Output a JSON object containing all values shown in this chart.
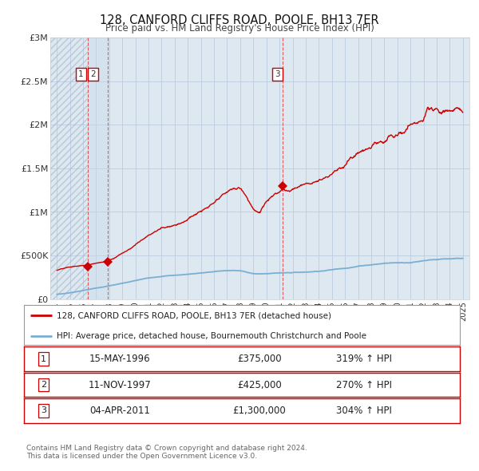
{
  "title": "128, CANFORD CLIFFS ROAD, POOLE, BH13 7ER",
  "subtitle": "Price paid vs. HM Land Registry's House Price Index (HPI)",
  "plot_bg_color": "#dde8f0",
  "red_line_color": "#cc0000",
  "blue_line_color": "#7aafd4",
  "vline_color": "#dd4444",
  "transactions": [
    {
      "label": "1",
      "date_num": 1996.37,
      "price": 375000
    },
    {
      "label": "2",
      "date_num": 1997.87,
      "price": 425000
    },
    {
      "label": "3",
      "date_num": 2011.25,
      "price": 1300000
    }
  ],
  "table_rows": [
    {
      "num": "1",
      "date": "15-MAY-1996",
      "price": "£375,000",
      "hpi": "319% ↑ HPI"
    },
    {
      "num": "2",
      "date": "11-NOV-1997",
      "price": "£425,000",
      "hpi": "270% ↑ HPI"
    },
    {
      "num": "3",
      "date": "04-APR-2011",
      "price": "£1,300,000",
      "hpi": "304% ↑ HPI"
    }
  ],
  "legend_line1": "128, CANFORD CLIFFS ROAD, POOLE, BH13 7ER (detached house)",
  "legend_line2": "HPI: Average price, detached house, Bournemouth Christchurch and Poole",
  "footnote1": "Contains HM Land Registry data © Crown copyright and database right 2024.",
  "footnote2": "This data is licensed under the Open Government Licence v3.0.",
  "ylim": [
    0,
    3000000
  ],
  "xlim": [
    1993.5,
    2025.5
  ],
  "yticks": [
    0,
    500000,
    1000000,
    1500000,
    2000000,
    2500000,
    3000000
  ],
  "ytick_labels": [
    "£0",
    "£500K",
    "£1M",
    "£1.5M",
    "£2M",
    "£2.5M",
    "£3M"
  ],
  "xticks": [
    1994,
    1995,
    1996,
    1997,
    1998,
    1999,
    2000,
    2001,
    2002,
    2003,
    2004,
    2005,
    2006,
    2007,
    2008,
    2009,
    2010,
    2011,
    2012,
    2013,
    2014,
    2015,
    2016,
    2017,
    2018,
    2019,
    2020,
    2021,
    2022,
    2023,
    2024,
    2025
  ],
  "hpi_x": [
    1994.0,
    1994.5,
    1995.0,
    1995.5,
    1996.0,
    1996.5,
    1997.0,
    1997.5,
    1998.0,
    1998.5,
    1999.0,
    1999.5,
    2000.0,
    2000.5,
    2001.0,
    2001.5,
    2002.0,
    2002.5,
    2003.0,
    2003.5,
    2004.0,
    2004.5,
    2005.0,
    2005.5,
    2006.0,
    2006.5,
    2007.0,
    2007.5,
    2008.0,
    2008.5,
    2009.0,
    2009.5,
    2010.0,
    2010.5,
    2011.0,
    2011.5,
    2012.0,
    2012.5,
    2013.0,
    2013.5,
    2014.0,
    2014.5,
    2015.0,
    2015.5,
    2016.0,
    2016.5,
    2017.0,
    2017.5,
    2018.0,
    2018.5,
    2019.0,
    2019.5,
    2020.0,
    2020.5,
    2021.0,
    2021.5,
    2022.0,
    2022.5,
    2023.0,
    2023.5,
    2024.0,
    2024.5,
    2025.0
  ],
  "hpi_y": [
    55000,
    62000,
    72000,
    85000,
    100000,
    115000,
    128000,
    140000,
    155000,
    168000,
    182000,
    196000,
    212000,
    228000,
    242000,
    255000,
    265000,
    272000,
    278000,
    282000,
    290000,
    298000,
    307000,
    315000,
    322000,
    328000,
    335000,
    335000,
    330000,
    315000,
    300000,
    295000,
    298000,
    303000,
    308000,
    312000,
    315000,
    318000,
    322000,
    328000,
    336000,
    345000,
    355000,
    365000,
    378000,
    390000,
    402000,
    415000,
    425000,
    435000,
    443000,
    450000,
    452000,
    455000,
    462000,
    472000,
    488000,
    502000,
    510000,
    512000,
    510000,
    508000,
    505000
  ],
  "prop_x": [
    1994.0,
    1994.5,
    1995.0,
    1995.5,
    1996.0,
    1996.37,
    1996.5,
    1997.0,
    1997.5,
    1997.87,
    1998.0,
    1998.5,
    1999.0,
    1999.5,
    2000.0,
    2000.5,
    2001.0,
    2001.5,
    2002.0,
    2002.5,
    2003.0,
    2003.5,
    2004.0,
    2004.5,
    2005.0,
    2005.5,
    2006.0,
    2006.5,
    2007.0,
    2007.5,
    2008.0,
    2008.5,
    2009.0,
    2009.3,
    2009.5,
    2009.7,
    2010.0,
    2010.5,
    2011.0,
    2011.25,
    2011.5,
    2012.0,
    2012.5,
    2013.0,
    2013.5,
    2014.0,
    2014.5,
    2015.0,
    2015.5,
    2016.0,
    2016.5,
    2017.0,
    2017.5,
    2018.0,
    2018.5,
    2019.0,
    2019.5,
    2020.0,
    2020.5,
    2021.0,
    2021.5,
    2022.0,
    2022.3,
    2022.5,
    2022.8,
    2023.0,
    2023.5,
    2024.0,
    2024.5,
    2025.0
  ],
  "prop_y": [
    330000,
    345000,
    358000,
    368000,
    375000,
    375000,
    382000,
    400000,
    415000,
    425000,
    440000,
    480000,
    530000,
    580000,
    640000,
    700000,
    755000,
    800000,
    840000,
    870000,
    900000,
    940000,
    990000,
    1040000,
    1080000,
    1110000,
    1150000,
    1200000,
    1260000,
    1290000,
    1300000,
    1200000,
    1080000,
    1040000,
    1020000,
    1080000,
    1150000,
    1200000,
    1260000,
    1300000,
    1300000,
    1320000,
    1350000,
    1380000,
    1420000,
    1480000,
    1540000,
    1600000,
    1670000,
    1740000,
    1800000,
    1860000,
    1890000,
    1920000,
    1950000,
    1970000,
    1990000,
    2000000,
    2050000,
    2100000,
    2150000,
    2200000,
    2340000,
    2310000,
    2260000,
    2250000,
    2220000,
    2200000,
    2180000,
    2160000
  ]
}
